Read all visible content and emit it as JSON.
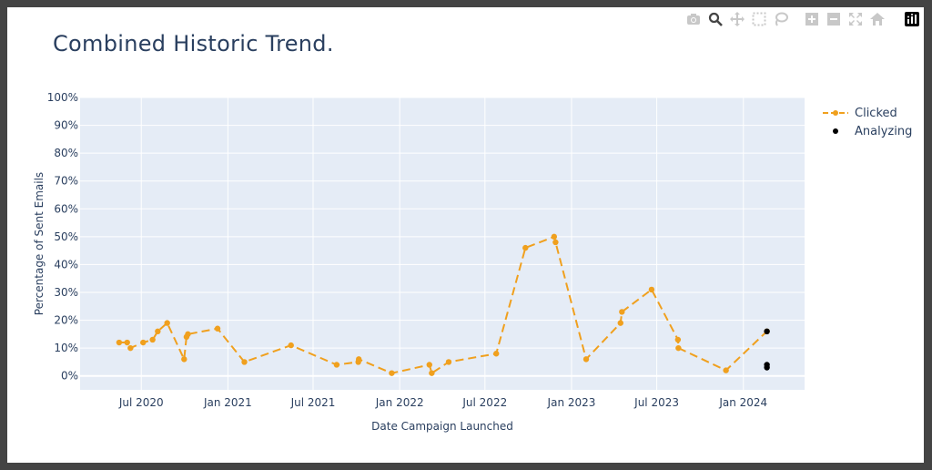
{
  "modebar": {
    "buttons": [
      "camera-icon",
      "zoom-icon",
      "pan-icon",
      "box-select-icon",
      "lasso-icon",
      "zoom-in-icon",
      "zoom-out-icon",
      "autoscale-icon",
      "reset-axes-icon",
      "plotly-logo-icon"
    ]
  },
  "chart_data": {
    "type": "line",
    "title": "Combined Historic Trend.",
    "xlabel": "Date Campaign Launched",
    "ylabel": "Percentage of Sent Emails",
    "xlim": [
      "2020-02-22",
      "2024-05-10"
    ],
    "ylim": [
      -5,
      100
    ],
    "y_ticks": [
      0,
      10,
      20,
      30,
      40,
      50,
      60,
      70,
      80,
      90,
      100
    ],
    "y_tick_labels": [
      "0%",
      "10%",
      "20%",
      "30%",
      "40%",
      "50%",
      "60%",
      "70%",
      "80%",
      "90%",
      "100%"
    ],
    "x_ticks": [
      "2020-07-01",
      "2021-01-01",
      "2021-07-01",
      "2022-01-01",
      "2022-07-01",
      "2023-01-01",
      "2023-07-01",
      "2024-01-01"
    ],
    "x_tick_labels": [
      "Jul 2020",
      "Jan 2021",
      "Jul 2021",
      "Jan 2022",
      "Jul 2022",
      "Jan 2023",
      "Jul 2023",
      "Jan 2024"
    ],
    "grid": true,
    "legend_position": "top-right outside",
    "plot_background": "#e5ecf6",
    "series": [
      {
        "name": "Clicked",
        "color": "#f0a01e",
        "style": "dashed line with markers",
        "points": [
          {
            "x": "2020-05-15",
            "y": 12
          },
          {
            "x": "2020-06-01",
            "y": 12
          },
          {
            "x": "2020-06-08",
            "y": 10
          },
          {
            "x": "2020-07-05",
            "y": 12
          },
          {
            "x": "2020-07-25",
            "y": 13
          },
          {
            "x": "2020-08-05",
            "y": 16
          },
          {
            "x": "2020-08-25",
            "y": 19
          },
          {
            "x": "2020-09-30",
            "y": 6
          },
          {
            "x": "2020-10-05",
            "y": 14
          },
          {
            "x": "2020-10-08",
            "y": 15
          },
          {
            "x": "2020-12-10",
            "y": 17
          },
          {
            "x": "2021-02-05",
            "y": 5
          },
          {
            "x": "2021-05-15",
            "y": 11
          },
          {
            "x": "2021-08-20",
            "y": 4
          },
          {
            "x": "2021-10-05",
            "y": 5
          },
          {
            "x": "2021-10-06",
            "y": 6
          },
          {
            "x": "2021-12-15",
            "y": 1
          },
          {
            "x": "2022-03-05",
            "y": 4
          },
          {
            "x": "2022-03-10",
            "y": 1
          },
          {
            "x": "2022-04-15",
            "y": 5
          },
          {
            "x": "2022-07-25",
            "y": 8
          },
          {
            "x": "2022-09-25",
            "y": 46
          },
          {
            "x": "2022-11-25",
            "y": 50
          },
          {
            "x": "2022-11-28",
            "y": 48
          },
          {
            "x": "2023-02-01",
            "y": 6
          },
          {
            "x": "2023-04-15",
            "y": 19
          },
          {
            "x": "2023-04-18",
            "y": 23
          },
          {
            "x": "2023-06-20",
            "y": 31
          },
          {
            "x": "2023-08-15",
            "y": 13
          },
          {
            "x": "2023-08-16",
            "y": 10
          },
          {
            "x": "2023-11-25",
            "y": 2
          },
          {
            "x": "2024-02-20",
            "y": 16
          }
        ]
      },
      {
        "name": "Analyzing",
        "color": "#000000",
        "style": "markers",
        "points": [
          {
            "x": "2024-02-20",
            "y": 16
          },
          {
            "x": "2024-02-20",
            "y": 4
          },
          {
            "x": "2024-02-20",
            "y": 3
          }
        ]
      }
    ]
  }
}
